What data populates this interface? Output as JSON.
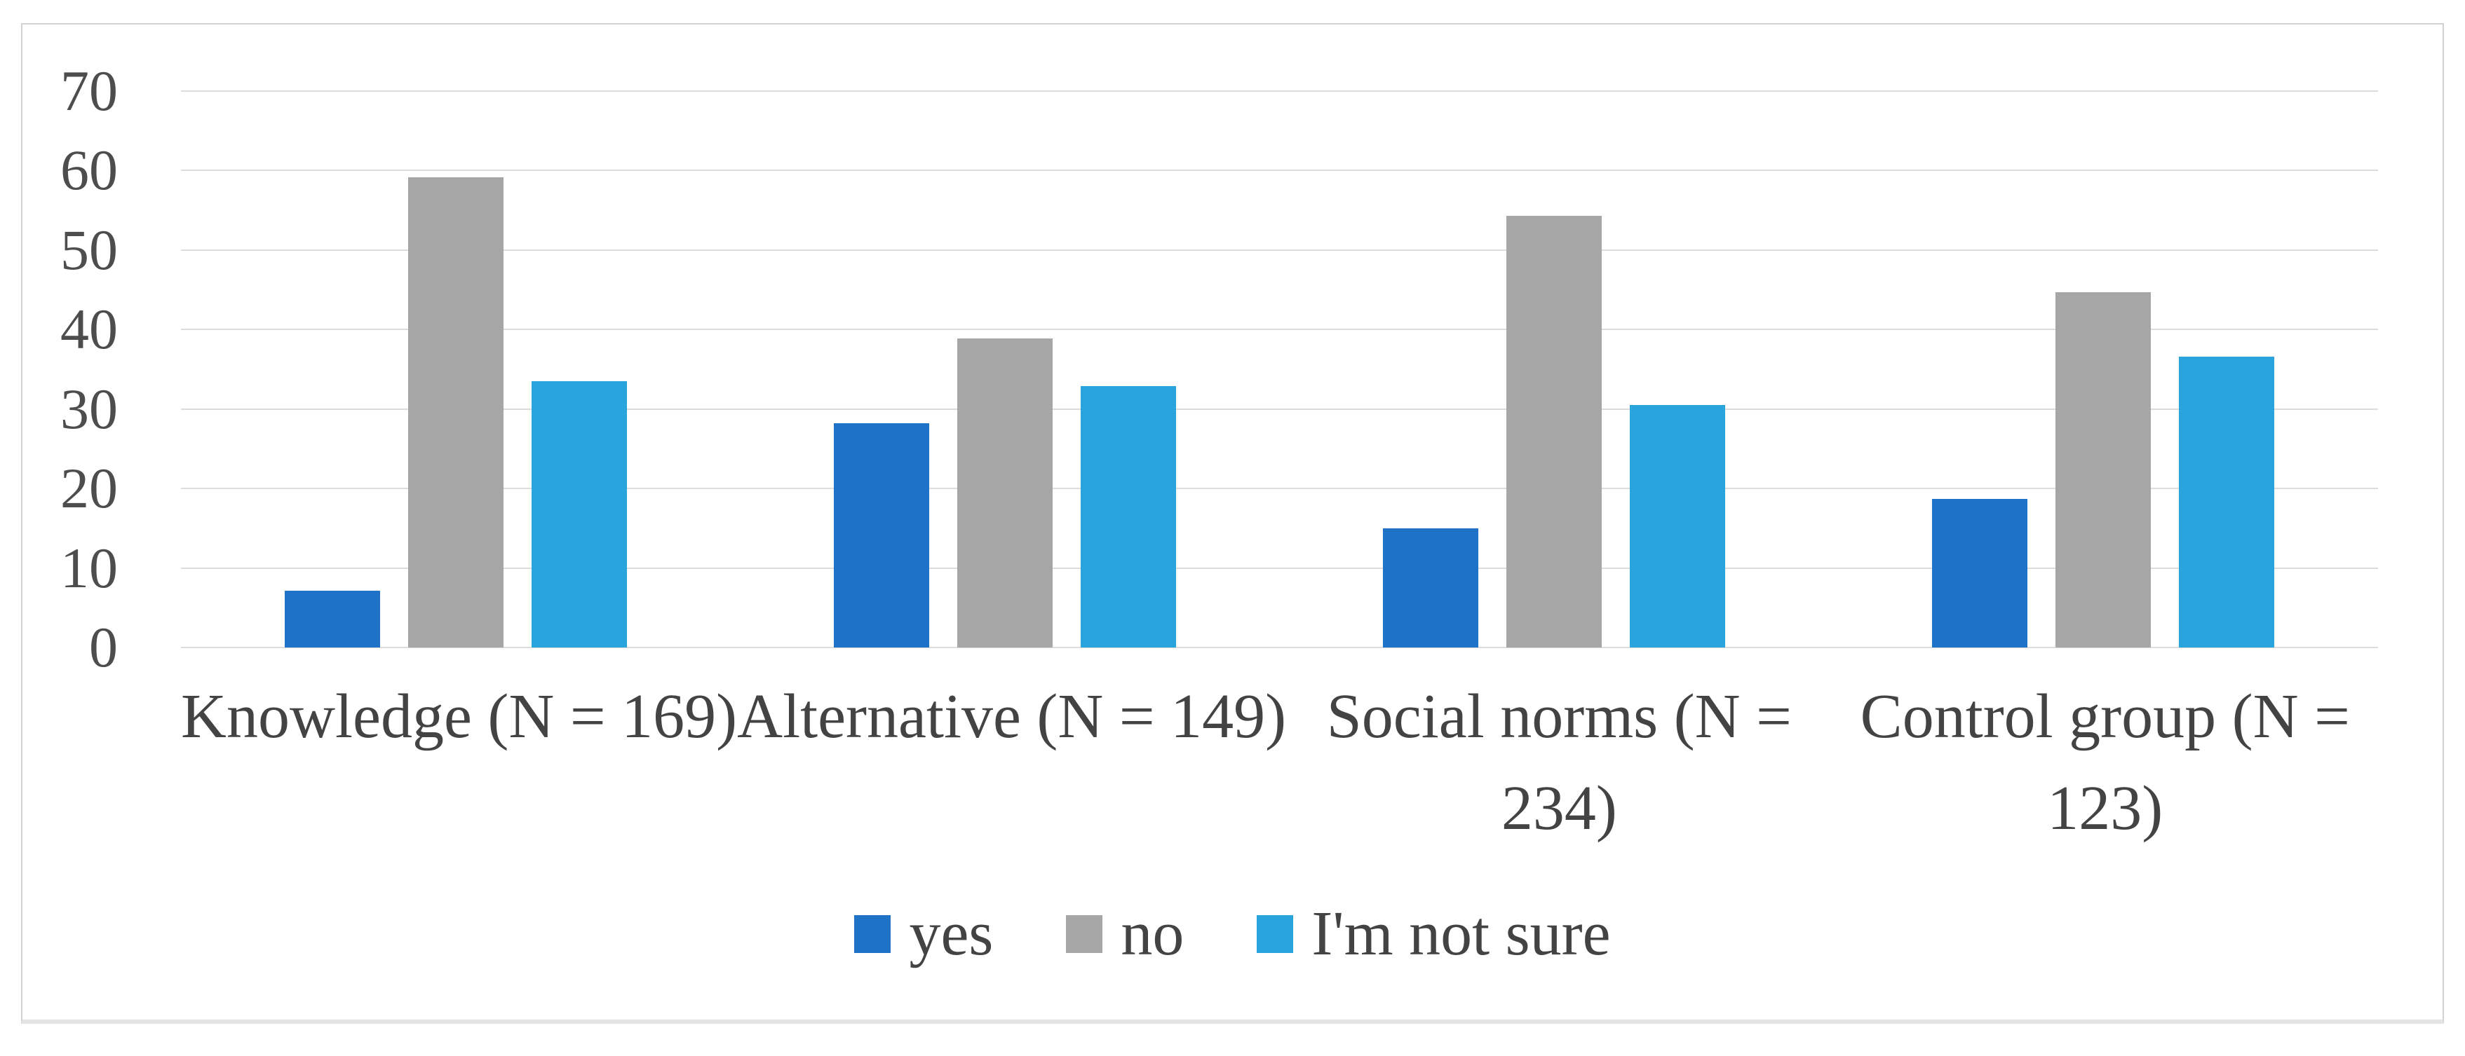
{
  "chart_data": {
    "type": "bar",
    "title": "",
    "categories": [
      "Knowledge (N = 169)",
      "Alternative (N = 149)",
      "Social norms (N = 234)",
      "Control group (N = 123)"
    ],
    "series": [
      {
        "name": "yes",
        "color": "#1e73c8",
        "values": [
          7.1,
          28.2,
          15.0,
          18.7
        ]
      },
      {
        "name": "no",
        "color": "#a6a6a6",
        "values": [
          59.2,
          38.9,
          54.3,
          44.7
        ]
      },
      {
        "name": "I'm not sure",
        "color": "#2aa4dc",
        "values": [
          33.5,
          32.9,
          30.5,
          36.6
        ]
      }
    ],
    "xlabel": "",
    "ylabel": "",
    "y_axis": {
      "min": 0,
      "max": 70,
      "step": 10,
      "tick_labels": [
        "0",
        "10",
        "20",
        "30",
        "40",
        "50",
        "60",
        "70"
      ]
    },
    "grid": true,
    "legend_position": "bottom"
  },
  "colors": {
    "background": "#ffffff",
    "frame_border": "#d2d2d2",
    "gridline": "#dcdcdc",
    "axis_text": "#4d4d4d",
    "label_text": "#434343"
  }
}
